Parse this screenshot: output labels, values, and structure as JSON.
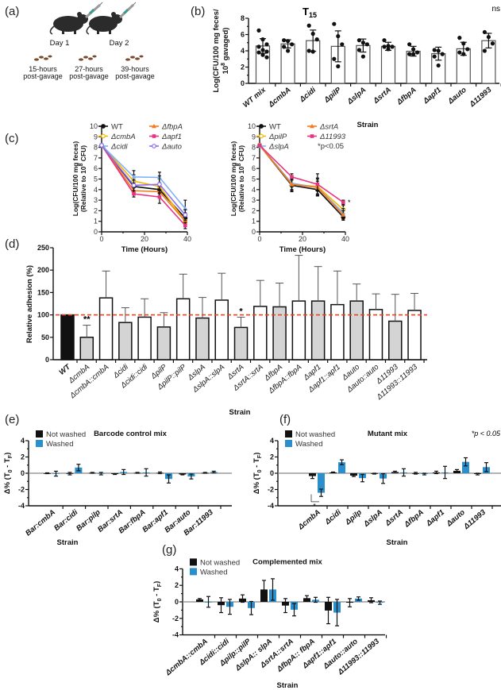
{
  "illustration": {
    "panel": "(a)",
    "day1": "Day 1",
    "day2": "Day 2",
    "timepoints": [
      {
        "line1": "15-hours",
        "line2": "post-gavage"
      },
      {
        "line1": "27-hours",
        "line2": "post-gavage"
      },
      {
        "line1": "39-hours",
        "line2": "post-gavage"
      }
    ]
  },
  "colors": {
    "black": "#111111",
    "gray_bar": "#d4d4d4",
    "washed": "#2b8fcc",
    "dashed_line": "#e8412c",
    "wt": "#111111",
    "cmbA": "#f5b700",
    "cidi": "#7fb2f5",
    "fbpA": "#f47c20",
    "apf1": "#e8347f",
    "auto": "#8d6cf0",
    "pilP": "#f5b700",
    "slpA": "#7fb2f5",
    "srtA": "#f47c20",
    "11993": "#e8347f"
  },
  "chart_data": [
    {
      "panel": "(b)",
      "type": "bar",
      "title": "T",
      "title_sub": "15",
      "annotation": "ns",
      "ylabel_line1": "Log(CFU/100 mg feces/",
      "ylabel_line2_a": "10",
      "ylabel_line2_sup": "8",
      "ylabel_line2_b": " gavaged)",
      "xlabel": "Strain",
      "ylim": [
        0,
        8
      ],
      "yticks": [
        0,
        2,
        4,
        6,
        8
      ],
      "categories": [
        "WT mix",
        "ΔcmbA",
        "Δcidi",
        "ΔpilP",
        "ΔslpA",
        "ΔsrtA",
        "ΔfbpA",
        "Δapf1",
        "Δauto",
        "Δ11993"
      ],
      "values": [
        4.6,
        4.85,
        5.25,
        4.55,
        4.65,
        4.55,
        3.95,
        3.65,
        4.25,
        5.25
      ],
      "errors": [
        0.9,
        0.5,
        1.3,
        1.9,
        0.8,
        0.5,
        0.6,
        0.8,
        0.8,
        0.9
      ],
      "points": [
        [
          6.5,
          5.4,
          4.8,
          4.5,
          4.1,
          3.9,
          3.8,
          3.5,
          3.2
        ],
        [
          5.3,
          5.2,
          4.8,
          4.5,
          4.0
        ],
        [
          7.1,
          6.1,
          5.4,
          4.0,
          3.9
        ],
        [
          7.3,
          5.8,
          4.8,
          3.0,
          2.1
        ],
        [
          5.3,
          5.0,
          4.8,
          4.1,
          3.3
        ],
        [
          5.3,
          4.6,
          4.5,
          4.5,
          4.2
        ],
        [
          4.8,
          4.2,
          3.8,
          3.6,
          3.6
        ],
        [
          4.1,
          4.0,
          3.6,
          3.3,
          2.2
        ],
        [
          5.6,
          4.9,
          4.2,
          3.8,
          3.6
        ],
        [
          6.3,
          5.7,
          4.9,
          4.0
        ]
      ]
    },
    {
      "panel": "(c)",
      "type": "line",
      "ylabel_line1": "Log(CFU/100 mg feces)",
      "ylabel_line2_a": "(Relative to 10",
      "ylabel_line2_sup": "8",
      "ylabel_line2_b": " CFU)",
      "xlabel": "Time (Hours)",
      "xlim": [
        0,
        40
      ],
      "ylim": [
        0,
        10
      ],
      "xticks": [
        0,
        20,
        40
      ],
      "yticks": [
        0,
        1,
        2,
        3,
        4,
        5,
        6,
        7,
        8,
        9,
        10
      ],
      "x": [
        0,
        15,
        27,
        39
      ],
      "series": [
        {
          "name": "WT",
          "key": "wt",
          "marker": "circle",
          "values": [
            8.2,
            4.3,
            4.0,
            1.3
          ],
          "errors": [
            0,
            0.5,
            0.6,
            0.5
          ]
        },
        {
          "name": "ΔcmbA",
          "key": "cmbA",
          "marker": "open-circle",
          "values": [
            8.2,
            4.8,
            4.3,
            1.0
          ],
          "errors": [
            0,
            0.6,
            0.7,
            0.4
          ]
        },
        {
          "name": "Δcidi",
          "key": "cidi",
          "marker": "triangle",
          "values": [
            8.2,
            5.2,
            5.15,
            2.2
          ],
          "errors": [
            0,
            0.6,
            0.5,
            0.8
          ]
        },
        {
          "name": "ΔfbpA",
          "key": "fbpA",
          "marker": "triangle",
          "values": [
            8.2,
            3.9,
            3.8,
            1.0
          ],
          "errors": [
            0,
            0.4,
            0.5,
            0.4
          ]
        },
        {
          "name": "Δapf1",
          "key": "apf1",
          "marker": "square",
          "values": [
            8.2,
            3.6,
            3.3,
            0.6
          ],
          "errors": [
            0,
            0.3,
            0.6,
            0.3
          ]
        },
        {
          "name": "Δauto",
          "key": "auto",
          "marker": "open-circle",
          "values": [
            8.2,
            4.4,
            4.5,
            1.6
          ],
          "errors": [
            0,
            0.5,
            0.8,
            0.5
          ]
        }
      ]
    },
    {
      "panel": "",
      "type": "line",
      "ylabel_line1": "Log(CFU/100 mg feces)",
      "ylabel_line2_a": "(Relative to 10",
      "ylabel_line2_sup": "8",
      "ylabel_line2_b": " CFU)",
      "xlabel": "Time (Hours)",
      "xlim": [
        0,
        40
      ],
      "ylim": [
        0,
        10
      ],
      "xticks": [
        0,
        20,
        40
      ],
      "yticks": [
        0,
        1,
        2,
        3,
        4,
        5,
        6,
        7,
        8,
        9,
        10
      ],
      "x": [
        0,
        15,
        27,
        39
      ],
      "annotation": "*p<0.05",
      "significance_mark": "*",
      "series": [
        {
          "name": "WT",
          "key": "wt",
          "marker": "circle",
          "values": [
            8.2,
            4.4,
            4.0,
            1.4
          ],
          "errors": [
            0,
            0.6,
            0.6,
            0.3
          ]
        },
        {
          "name": "ΔpilP",
          "key": "pilP",
          "marker": "open-circle",
          "values": [
            8.2,
            4.5,
            4.3,
            2.1
          ],
          "errors": [
            0,
            0.6,
            0.8,
            0.4
          ]
        },
        {
          "name": "ΔslpA",
          "key": "slpA",
          "marker": "triangle",
          "values": [
            8.2,
            4.6,
            4.2,
            1.8
          ],
          "errors": [
            0,
            0.7,
            0.8,
            0.4
          ]
        },
        {
          "name": "ΔsrtA",
          "key": "srtA",
          "marker": "triangle",
          "values": [
            8.2,
            4.5,
            4.2,
            1.6
          ],
          "errors": [
            0,
            0.5,
            0.6,
            0.4
          ]
        },
        {
          "name": "Δ11993",
          "key": "11993",
          "marker": "square",
          "values": [
            8.2,
            5.2,
            4.5,
            2.8
          ],
          "errors": [
            0,
            0.3,
            1.0,
            0.2
          ]
        }
      ]
    },
    {
      "panel": "(d)",
      "type": "bar",
      "ylabel": "Relative adhesion (%)",
      "xlabel": "Strain",
      "ylim": [
        0,
        250
      ],
      "yticks": [
        0,
        50,
        100,
        150,
        200,
        250
      ],
      "reference_line": 100,
      "categories": [
        "WT",
        "ΔcmbA",
        "ΔcmbA::cmbA",
        "Δcidi",
        "Δcidi::cidi",
        "ΔpilP",
        "ΔpilP::pilP",
        "ΔslpA",
        "ΔslpA::slpA",
        "ΔsrtA",
        "ΔsrtA::srtA",
        "ΔfbpA",
        "ΔfbpA::fbpA",
        "Δapf1",
        "Δapf1::apf1",
        "Δauto",
        "Δauto::auto",
        "Δ11993",
        "Δ11993::11993"
      ],
      "groups": [
        "wt",
        "mutant",
        "complemented",
        "mutant",
        "complemented",
        "mutant",
        "complemented",
        "mutant",
        "complemented",
        "mutant",
        "complemented",
        "mutant",
        "complemented",
        "mutant",
        "complemented",
        "mutant",
        "complemented",
        "mutant",
        "complemented"
      ],
      "values": [
        100,
        50,
        138,
        83,
        95,
        73,
        136,
        93,
        133,
        72,
        119,
        118,
        131,
        131,
        123,
        131,
        112,
        86,
        110
      ],
      "error_tops": [
        100,
        77,
        198,
        116,
        136,
        105,
        191,
        139,
        193,
        95,
        177,
        171,
        233,
        208,
        198,
        169,
        147,
        146,
        148
      ],
      "significance": [
        {
          "index": 1,
          "mark": "**"
        },
        {
          "index": 9,
          "mark": "*"
        }
      ]
    },
    {
      "panel": "(e)",
      "type": "bar",
      "title": "Barcode control  mix",
      "ylabel_a": "Δ% (T",
      "ylabel_sub1": "0",
      "ylabel_b": " - T",
      "ylabel_sub2": "F",
      "ylabel_c": ")",
      "xlabel": "Strain",
      "ylim": [
        -4,
        4
      ],
      "yticks": [
        -4,
        -2,
        0,
        2,
        4
      ],
      "legend": [
        "Not washed",
        "Washed"
      ],
      "categories": [
        "Bar:cmbA",
        "Bar:cidi",
        "Bar:pilp",
        "Bar:srtA",
        "Bar:fbpA",
        "Bar:apf1",
        "Bar:auto",
        "Bar:11993"
      ],
      "series": [
        {
          "name": "Not washed",
          "values": [
            0,
            -0.05,
            0.05,
            -0.1,
            0.05,
            0.05,
            -0.15,
            0.05
          ],
          "errors": [
            0.05,
            0.15,
            0.05,
            0.05,
            0.05,
            0.1,
            0.05,
            0.05
          ]
        },
        {
          "name": "Washed",
          "values": [
            -0.05,
            0.7,
            -0.05,
            0.15,
            0.1,
            -0.7,
            -0.4,
            0.15
          ],
          "errors": [
            0.3,
            0.4,
            0.15,
            0.3,
            0.45,
            0.5,
            0.3,
            0.1
          ]
        }
      ]
    },
    {
      "panel": "(f)",
      "type": "bar",
      "title": "Mutant mix",
      "annotation": "*p < 0.05",
      "significance_mark": "*",
      "ylabel_a": "Δ% (T",
      "ylabel_sub1": "0",
      "ylabel_b": " - T",
      "ylabel_sub2": "F",
      "ylabel_c": ")",
      "xlabel": "Strain",
      "ylim": [
        -4,
        4
      ],
      "yticks": [
        -4,
        -2,
        0,
        2,
        4
      ],
      "legend": [
        "Not washed",
        "Washed"
      ],
      "categories": [
        "ΔcmbA",
        "Δcidi",
        "Δpilp",
        "ΔslpA",
        "ΔsrtA",
        "ΔfbpA",
        "Δapf1",
        "Δauto",
        "Δ11993"
      ],
      "series": [
        {
          "name": "Not washed",
          "values": [
            -0.35,
            0.1,
            -0.3,
            -0.05,
            0.15,
            0,
            0.1,
            0.3,
            -0.1
          ],
          "errors": [
            0.3,
            0.05,
            0.1,
            0.05,
            0.1,
            0.1,
            0.15,
            0.15,
            0.1
          ]
        },
        {
          "name": "Washed",
          "values": [
            -2.4,
            1.35,
            -0.6,
            -0.65,
            0.1,
            -0.1,
            0.1,
            1.4,
            0.75
          ],
          "errors": [
            0.45,
            0.3,
            0.45,
            0.6,
            0.45,
            0.1,
            0.75,
            0.5,
            0.55
          ]
        }
      ]
    },
    {
      "panel": "(g)",
      "type": "bar",
      "title": "Complemented mix",
      "ylabel_a": "Δ% (T",
      "ylabel_sub1": "0",
      "ylabel_b": " - T",
      "ylabel_sub2": "F",
      "ylabel_c": ")",
      "xlabel": "Strain",
      "ylim": [
        -4,
        4
      ],
      "yticks": [
        -4,
        -2,
        0,
        2,
        4
      ],
      "legend": [
        "Not washed",
        "Washed"
      ],
      "categories": [
        "ΔcmbA::cmbA",
        "Δcidi::cidi",
        "Δpilp::pilP",
        "ΔslpA:: slpA",
        "ΔsrtA::srtA",
        "ΔfbpA:: fbpA",
        "Δapf1::apf1",
        "Δauto::auto",
        "Δ11993::11993"
      ],
      "series": [
        {
          "name": "Not washed",
          "values": [
            0.3,
            -0.4,
            0.4,
            1.5,
            -0.45,
            0.45,
            -1.05,
            -0.1,
            0.2
          ],
          "errors": [
            0.1,
            0.9,
            0.45,
            1.1,
            0.85,
            0.3,
            1.6,
            0.5,
            0.3
          ]
        },
        {
          "name": "Washed",
          "values": [
            0,
            -0.6,
            -0.75,
            1.5,
            -0.95,
            0.25,
            -1.3,
            0.4,
            -0.1
          ],
          "errors": [
            0.65,
            0.9,
            0.8,
            1.3,
            0.75,
            0.3,
            1.6,
            0.2,
            0.2
          ]
        }
      ]
    }
  ]
}
